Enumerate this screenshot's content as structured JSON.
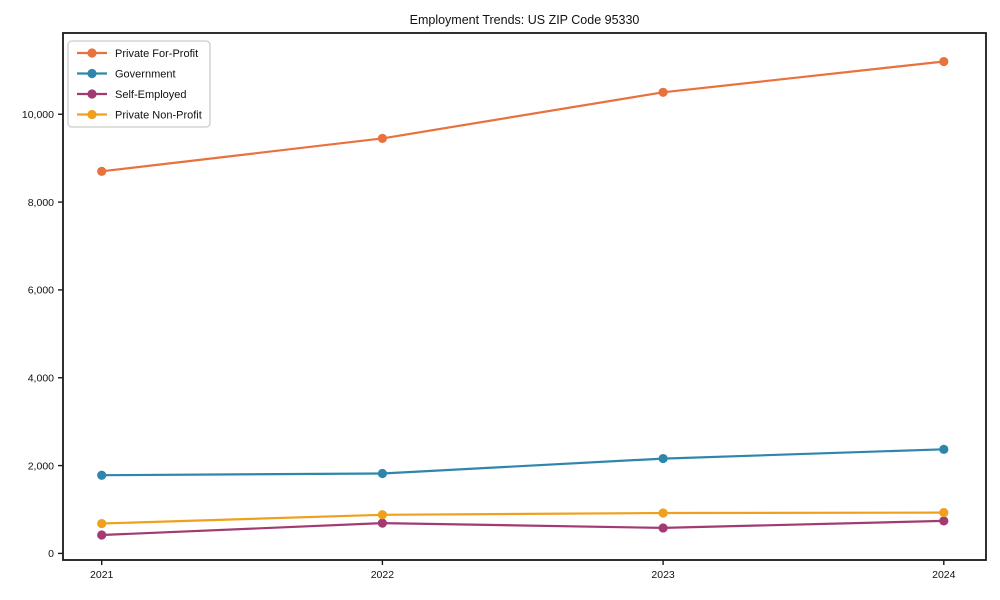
{
  "chart_data": {
    "type": "line",
    "title": "Employment Trends: US ZIP Code 95330",
    "x": [
      2021,
      2022,
      2023,
      2024
    ],
    "x_tick_labels": [
      "2021",
      "2022",
      "2023",
      "2024"
    ],
    "y_ticks": [
      0,
      2000,
      4000,
      6000,
      8000,
      10000
    ],
    "y_tick_labels": [
      "0",
      "2,000",
      "4,000",
      "6,000",
      "8,000",
      "10,000"
    ],
    "ylim": [
      -150,
      11850
    ],
    "grid": false,
    "legend_position": "upper-left",
    "background_color": "#ffffff",
    "axis_color": "#1a1a1a",
    "series": [
      {
        "name": "Private For-Profit",
        "color": "#e8713e",
        "values": [
          8700,
          9450,
          10500,
          11200
        ]
      },
      {
        "name": "Government",
        "color": "#2e86ab",
        "values": [
          1780,
          1820,
          2160,
          2370
        ]
      },
      {
        "name": "Self-Employed",
        "color": "#a23b72",
        "values": [
          420,
          690,
          580,
          740
        ]
      },
      {
        "name": "Private Non-Profit",
        "color": "#f0a01e",
        "values": [
          680,
          880,
          920,
          930
        ]
      }
    ]
  }
}
